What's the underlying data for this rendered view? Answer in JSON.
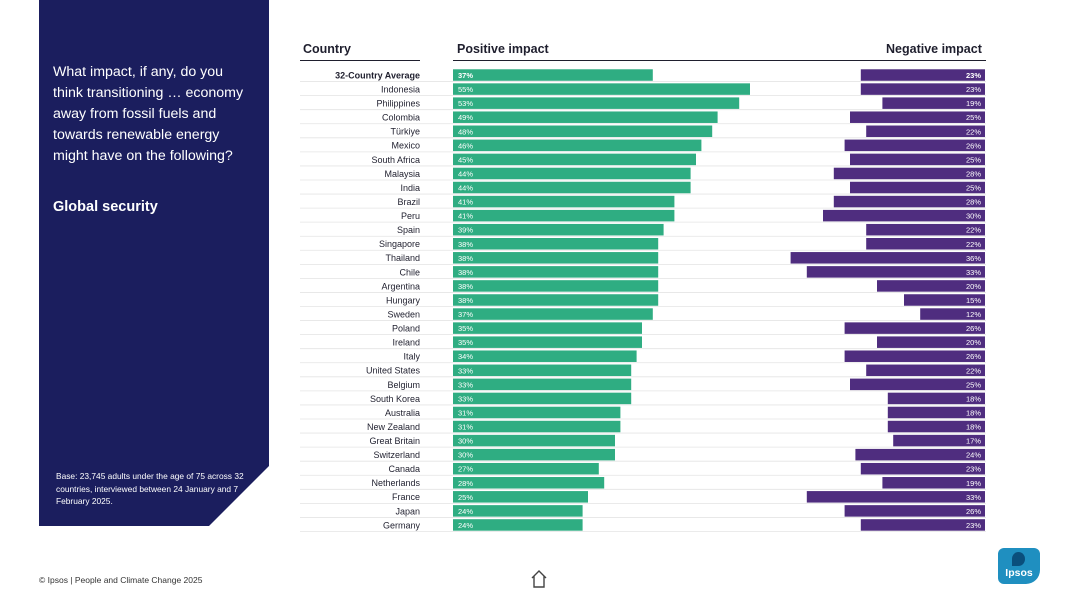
{
  "panel": {
    "question": "What impact, if any, do you think transitioning … economy away from fossil fuels and towards renewable energy might have on the following?",
    "subtitle": "Global security",
    "base": "Base: 23,745 adults under the age of 75 across 32 countries, interviewed between 24 January and 7 February 2025."
  },
  "headers": {
    "country": "Country",
    "positive": "Positive impact",
    "negative": "Negative impact"
  },
  "footer": {
    "copyright": "© Ipsos | People and Climate Change 2025",
    "logo_text": "Ipsos"
  },
  "colors": {
    "positive": "#2fad82",
    "negative": "#4f2d7f",
    "panel": "#1b1e5e"
  },
  "chart_data": {
    "type": "bar",
    "title": "Global security",
    "categories": [
      "32-Country Average",
      "Indonesia",
      "Philippines",
      "Colombia",
      "Türkiye",
      "Mexico",
      "South Africa",
      "Malaysia",
      "India",
      "Brazil",
      "Peru",
      "Spain",
      "Singapore",
      "Thailand",
      "Chile",
      "Argentina",
      "Hungary",
      "Sweden",
      "Poland",
      "Ireland",
      "Italy",
      "United States",
      "Belgium",
      "South Korea",
      "Australia",
      "New Zealand",
      "Great Britain",
      "Switzerland",
      "Canada",
      "Netherlands",
      "France",
      "Japan",
      "Germany"
    ],
    "series": [
      {
        "name": "Positive impact",
        "values": [
          37,
          55,
          53,
          49,
          48,
          46,
          45,
          44,
          44,
          41,
          41,
          39,
          38,
          38,
          38,
          38,
          38,
          37,
          35,
          35,
          34,
          33,
          33,
          33,
          31,
          31,
          30,
          30,
          27,
          28,
          25,
          24,
          24
        ]
      },
      {
        "name": "Negative impact",
        "values": [
          23,
          23,
          19,
          25,
          22,
          26,
          25,
          28,
          25,
          28,
          30,
          22,
          22,
          36,
          33,
          20,
          15,
          12,
          26,
          20,
          26,
          22,
          25,
          18,
          18,
          18,
          17,
          24,
          23,
          19,
          33,
          26,
          23
        ]
      }
    ],
    "value_suffix": "%",
    "ylim": [
      0,
      100
    ]
  }
}
